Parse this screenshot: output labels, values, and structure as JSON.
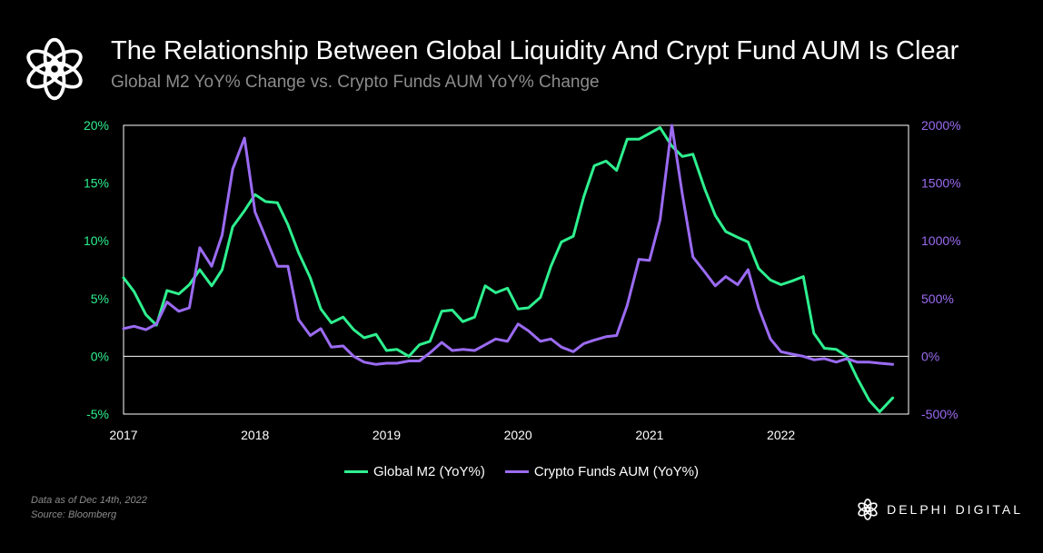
{
  "header": {
    "title": "The Relationship Between Global Liquidity And Crypt Fund AUM Is Clear",
    "subtitle": "Global M2 YoY% Change vs. Crypto Funds AUM YoY% Change"
  },
  "colors": {
    "background": "#000000",
    "m2": "#2ef08f",
    "aum": "#9b6bf2",
    "grid": "#ffffff",
    "text": "#ffffff",
    "muted": "#8c8c8c"
  },
  "icons": {
    "header_logo": "delphi-flower-logo-icon",
    "brand_logo": "delphi-flower-logo-icon"
  },
  "chart_data": {
    "type": "line",
    "title": "The Relationship Between Global Liquidity And Crypt Fund AUM Is Clear",
    "subtitle": "Global M2 YoY% Change vs. Crypto Funds AUM YoY% Change",
    "x_range": [
      2017.0,
      2022.97
    ],
    "x_ticks": [
      2017,
      2018,
      2019,
      2020,
      2021,
      2022
    ],
    "x_tick_labels": [
      "2017",
      "2018",
      "2019",
      "2020",
      "2021",
      "2022"
    ],
    "y_left": {
      "range": [
        -5,
        20
      ],
      "ticks": [
        -5,
        0,
        5,
        10,
        15,
        20
      ],
      "tick_labels": [
        "-5%",
        "0%",
        "5%",
        "10%",
        "15%",
        "20%"
      ],
      "color": "#2ef08f"
    },
    "y_right": {
      "range": [
        -500,
        2000
      ],
      "ticks": [
        -500,
        0,
        500,
        1000,
        1500,
        2000
      ],
      "tick_labels": [
        "-500%",
        "0%",
        "500%",
        "1000%",
        "1500%",
        "2000%"
      ],
      "color": "#9b6bf2"
    },
    "zero_line": true,
    "grid": false,
    "legend_position": "bottom-center",
    "series": [
      {
        "name": "Global M2 (YoY%)",
        "axis": "left",
        "color": "#2ef08f",
        "points": [
          [
            2017.0,
            6.8
          ],
          [
            2017.08,
            5.6
          ],
          [
            2017.17,
            3.6
          ],
          [
            2017.25,
            2.7
          ],
          [
            2017.33,
            5.7
          ],
          [
            2017.42,
            5.4
          ],
          [
            2017.5,
            6.2
          ],
          [
            2017.58,
            7.5
          ],
          [
            2017.67,
            6.1
          ],
          [
            2017.75,
            7.5
          ],
          [
            2017.83,
            11.2
          ],
          [
            2017.92,
            12.6
          ],
          [
            2018.0,
            14.0
          ],
          [
            2018.08,
            13.4
          ],
          [
            2018.17,
            13.3
          ],
          [
            2018.25,
            11.4
          ],
          [
            2018.33,
            9.0
          ],
          [
            2018.42,
            6.8
          ],
          [
            2018.5,
            4.1
          ],
          [
            2018.58,
            2.9
          ],
          [
            2018.67,
            3.4
          ],
          [
            2018.75,
            2.3
          ],
          [
            2018.83,
            1.6
          ],
          [
            2018.92,
            1.9
          ],
          [
            2019.0,
            0.5
          ],
          [
            2019.08,
            0.6
          ],
          [
            2019.17,
            0.0
          ],
          [
            2019.25,
            1.0
          ],
          [
            2019.33,
            1.3
          ],
          [
            2019.42,
            3.9
          ],
          [
            2019.5,
            4.0
          ],
          [
            2019.58,
            3.0
          ],
          [
            2019.67,
            3.4
          ],
          [
            2019.75,
            6.1
          ],
          [
            2019.83,
            5.5
          ],
          [
            2019.92,
            5.9
          ],
          [
            2020.0,
            4.1
          ],
          [
            2020.08,
            4.2
          ],
          [
            2020.17,
            5.1
          ],
          [
            2020.25,
            7.8
          ],
          [
            2020.33,
            9.9
          ],
          [
            2020.42,
            10.4
          ],
          [
            2020.5,
            13.8
          ],
          [
            2020.58,
            16.5
          ],
          [
            2020.67,
            16.9
          ],
          [
            2020.75,
            16.1
          ],
          [
            2020.83,
            18.8
          ],
          [
            2020.92,
            18.8
          ],
          [
            2021.0,
            19.3
          ],
          [
            2021.08,
            19.8
          ],
          [
            2021.17,
            18.2
          ],
          [
            2021.25,
            17.3
          ],
          [
            2021.33,
            17.5
          ],
          [
            2021.42,
            14.5
          ],
          [
            2021.5,
            12.2
          ],
          [
            2021.58,
            10.8
          ],
          [
            2021.67,
            10.3
          ],
          [
            2021.75,
            9.9
          ],
          [
            2021.83,
            7.6
          ],
          [
            2021.92,
            6.6
          ],
          [
            2022.0,
            6.2
          ],
          [
            2022.08,
            6.5
          ],
          [
            2022.17,
            6.9
          ],
          [
            2022.25,
            2.0
          ],
          [
            2022.33,
            0.7
          ],
          [
            2022.42,
            0.6
          ],
          [
            2022.5,
            0.0
          ],
          [
            2022.58,
            -1.9
          ],
          [
            2022.67,
            -3.8
          ],
          [
            2022.75,
            -4.8
          ],
          [
            2022.85,
            -3.6
          ]
        ]
      },
      {
        "name": "Crypto Funds AUM (YoY%)",
        "axis": "right",
        "color": "#9b6bf2",
        "points": [
          [
            2017.0,
            240
          ],
          [
            2017.08,
            260
          ],
          [
            2017.17,
            230
          ],
          [
            2017.25,
            280
          ],
          [
            2017.33,
            470
          ],
          [
            2017.42,
            390
          ],
          [
            2017.5,
            420
          ],
          [
            2017.58,
            940
          ],
          [
            2017.67,
            780
          ],
          [
            2017.75,
            1050
          ],
          [
            2017.83,
            1620
          ],
          [
            2017.92,
            1890
          ],
          [
            2018.0,
            1250
          ],
          [
            2018.08,
            1030
          ],
          [
            2018.17,
            780
          ],
          [
            2018.25,
            780
          ],
          [
            2018.33,
            320
          ],
          [
            2018.42,
            180
          ],
          [
            2018.5,
            240
          ],
          [
            2018.58,
            80
          ],
          [
            2018.67,
            90
          ],
          [
            2018.75,
            0
          ],
          [
            2018.83,
            -50
          ],
          [
            2018.92,
            -70
          ],
          [
            2019.0,
            -60
          ],
          [
            2019.08,
            -60
          ],
          [
            2019.17,
            -40
          ],
          [
            2019.25,
            -40
          ],
          [
            2019.33,
            30
          ],
          [
            2019.42,
            120
          ],
          [
            2019.5,
            50
          ],
          [
            2019.58,
            60
          ],
          [
            2019.67,
            50
          ],
          [
            2019.75,
            100
          ],
          [
            2019.83,
            150
          ],
          [
            2019.92,
            130
          ],
          [
            2020.0,
            280
          ],
          [
            2020.08,
            220
          ],
          [
            2020.17,
            130
          ],
          [
            2020.25,
            150
          ],
          [
            2020.33,
            80
          ],
          [
            2020.42,
            40
          ],
          [
            2020.5,
            110
          ],
          [
            2020.58,
            140
          ],
          [
            2020.67,
            170
          ],
          [
            2020.75,
            180
          ],
          [
            2020.83,
            440
          ],
          [
            2020.92,
            840
          ],
          [
            2021.0,
            830
          ],
          [
            2021.08,
            1180
          ],
          [
            2021.17,
            2000
          ],
          [
            2021.25,
            1400
          ],
          [
            2021.33,
            860
          ],
          [
            2021.42,
            730
          ],
          [
            2021.5,
            610
          ],
          [
            2021.58,
            690
          ],
          [
            2021.67,
            620
          ],
          [
            2021.75,
            750
          ],
          [
            2021.83,
            420
          ],
          [
            2021.92,
            150
          ],
          [
            2022.0,
            40
          ],
          [
            2022.08,
            20
          ],
          [
            2022.17,
            0
          ],
          [
            2022.25,
            -30
          ],
          [
            2022.33,
            -20
          ],
          [
            2022.42,
            -50
          ],
          [
            2022.5,
            -20
          ],
          [
            2022.58,
            -50
          ],
          [
            2022.67,
            -50
          ],
          [
            2022.75,
            -60
          ],
          [
            2022.85,
            -70
          ]
        ]
      }
    ]
  },
  "legend": {
    "m2_label": "Global M2 (YoY%)",
    "aum_label": "Crypto Funds AUM (YoY%)"
  },
  "footer": {
    "note_date": "Data as of Dec 14th, 2022",
    "note_source": "Source: Bloomberg",
    "brand": "DELPHI DIGITAL"
  }
}
